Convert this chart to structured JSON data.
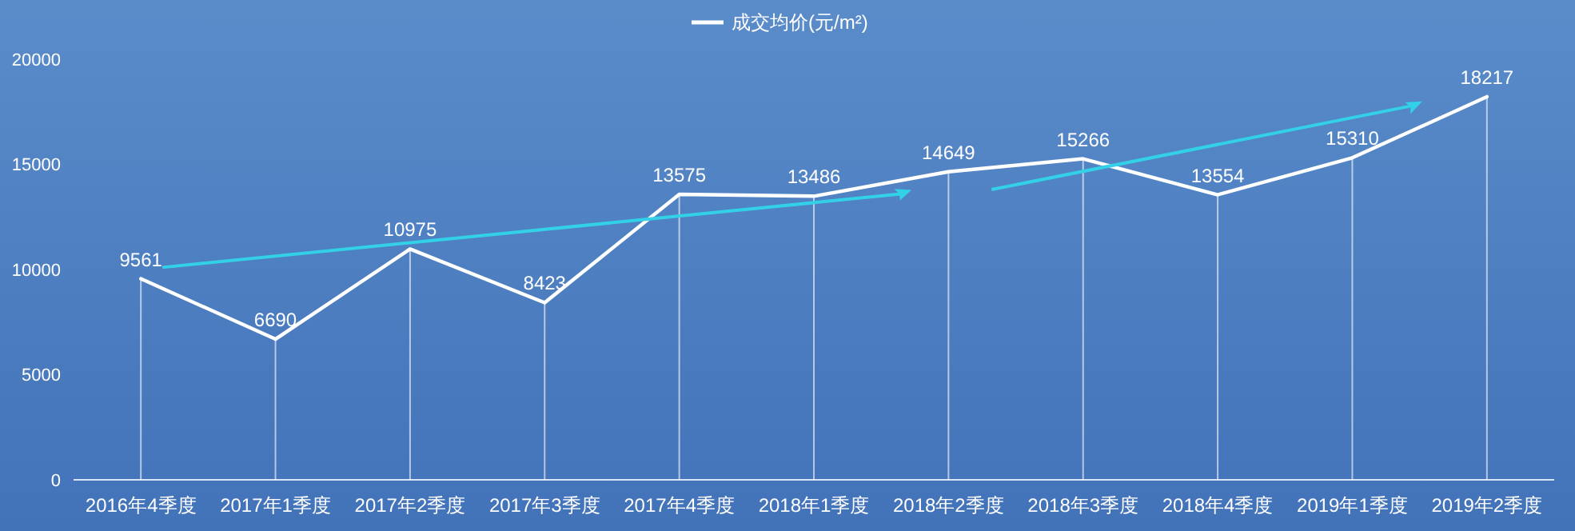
{
  "chart_data": {
    "type": "line",
    "categories": [
      "2016年4季度",
      "2017年1季度",
      "2017年2季度",
      "2017年3季度",
      "2017年4季度",
      "2018年1季度",
      "2018年2季度",
      "2018年3季度",
      "2018年4季度",
      "2019年1季度",
      "2019年2季度"
    ],
    "series": [
      {
        "name": "成交均价(元/m²)",
        "color": "#ffffff",
        "values": [
          9561,
          6690,
          10975,
          8423,
          13575,
          13486,
          14649,
          15266,
          13554,
          15310,
          18217
        ]
      }
    ],
    "ylim": [
      0,
      20000
    ],
    "yticks": [
      0,
      5000,
      10000,
      15000,
      20000
    ],
    "grid": "x",
    "legend": "top",
    "data_labels": true,
    "marker": "none",
    "line_style": "solid"
  }
}
